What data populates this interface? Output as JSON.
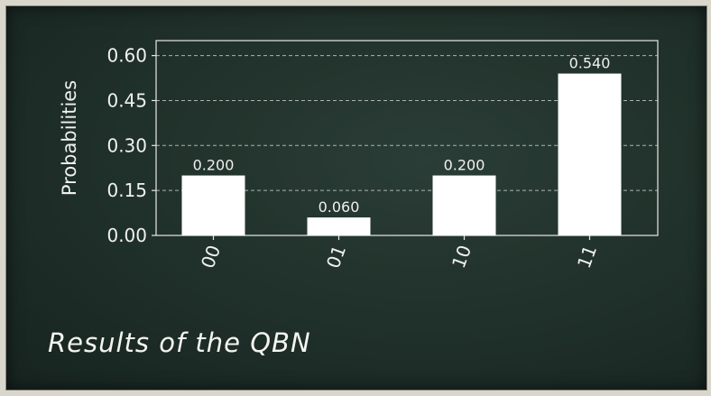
{
  "chart_data": {
    "type": "bar",
    "categories": [
      "00",
      "01",
      "10",
      "11"
    ],
    "values": [
      0.2,
      0.06,
      0.2,
      0.54
    ],
    "value_labels": [
      "0.200",
      "0.060",
      "0.200",
      "0.540"
    ],
    "title": "",
    "xlabel": "",
    "ylabel": "Probabilities",
    "ylim": [
      0,
      0.65
    ],
    "yticks": [
      "0.00",
      "0.15",
      "0.30",
      "0.45",
      "0.60"
    ],
    "ytick_values": [
      0,
      0.15,
      0.3,
      0.45,
      0.6
    ],
    "grid": true,
    "colors": {
      "bar": "#ffffff",
      "text": "#f0f0f0",
      "grid": "#cfd4cf",
      "axis": "#e8e8e8"
    }
  },
  "caption": "Results of the QBN"
}
